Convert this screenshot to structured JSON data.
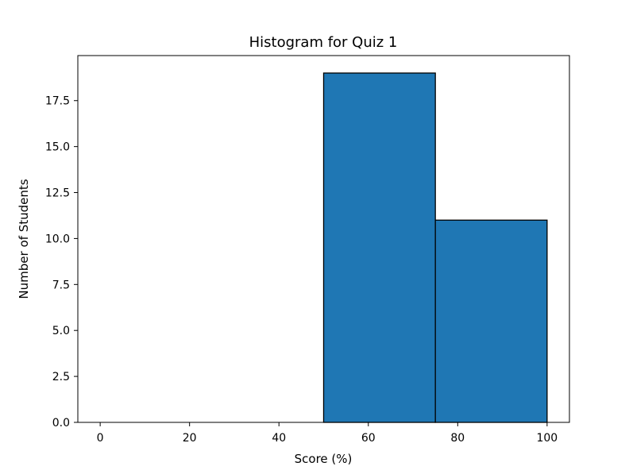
{
  "chart_data": {
    "type": "bar",
    "title": "Histogram for Quiz 1",
    "xlabel": "Score (%)",
    "ylabel": "Number of Students",
    "bins": [
      {
        "start": 0,
        "end": 25,
        "value": 0
      },
      {
        "start": 25,
        "end": 50,
        "value": 0
      },
      {
        "start": 50,
        "end": 75,
        "value": 19
      },
      {
        "start": 75,
        "end": 100,
        "value": 11
      }
    ],
    "xlim": [
      -5,
      105
    ],
    "ylim": [
      0,
      19.95
    ],
    "x_ticks": [
      0,
      20,
      40,
      60,
      80,
      100
    ],
    "y_ticks": [
      0.0,
      2.5,
      5.0,
      7.5,
      10.0,
      12.5,
      15.0,
      17.5
    ],
    "x_tick_labels": [
      "0",
      "20",
      "40",
      "60",
      "80",
      "100"
    ],
    "y_tick_labels": [
      "0.0",
      "2.5",
      "5.0",
      "7.5",
      "10.0",
      "12.5",
      "15.0",
      "17.5"
    ],
    "colors": {
      "bar_fill": "#1f77b4",
      "bar_edge": "#000000",
      "axis": "#000000",
      "background": "#ffffff"
    },
    "grid": false
  }
}
